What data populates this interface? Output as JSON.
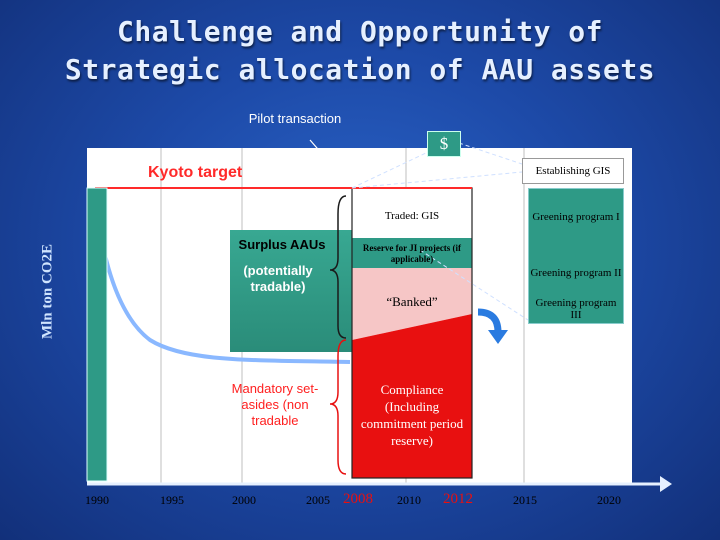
{
  "title": {
    "line1": "Challenge and Opportunity of",
    "line2": "Strategic allocation of AAU assets"
  },
  "labels": {
    "pilot": "Pilot transaction",
    "dollar": "$",
    "kyoto": "Kyoto target",
    "gis": "Establishing GIS",
    "greening1": "Greening program I",
    "greening2": "Greening program II",
    "greening3": "Greening program III",
    "y_axis": "Mln ton CO2E",
    "surplus": "Surplus AAUs",
    "potential": "(potentially tradable)",
    "mandatory": "Mandatory set-asides (non tradable",
    "traded": "Traded: GIS",
    "reserve": "Reserve for JI projects (if applicable)",
    "banked": "“Banked”",
    "compliance": "Compliance (Including commitment period reserve)"
  },
  "years": [
    "1990",
    "1995",
    "2000",
    "2005",
    "2008",
    "2010",
    "2012",
    "2015",
    "2020"
  ],
  "highlight_years": [
    "2008",
    "2012"
  ],
  "colors": {
    "background": "#1d4aa8",
    "teal": "#2e9a86",
    "red": "#e81010",
    "pink": "#f6c6c6",
    "kyoto": "#ff2a2a"
  }
}
